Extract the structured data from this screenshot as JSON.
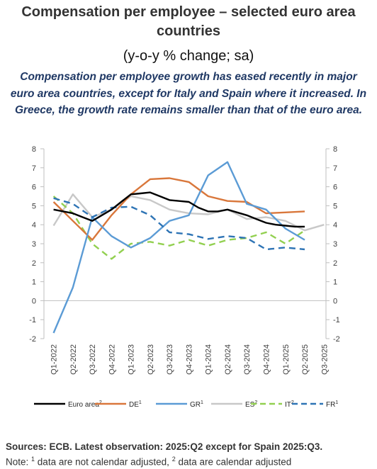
{
  "header": {
    "title_line1": "Compensation per employee – selected euro area",
    "title_line2": "countries",
    "subtitle": "(y-o-y % change; sa)",
    "lead": "Compensation per employee growth has eased recently in major euro area countries, except for Italy and Spain where it increased. In Greece, the growth rate remains smaller than that of the euro area."
  },
  "footer": {
    "sources": "Sources: ECB. Latest observation: 2025:Q2 except for Spain 2025:Q3.",
    "note_prefix": "Note: ",
    "note_sup1": "1",
    "note_text1": " data are not calendar adjusted, ",
    "note_sup2": "2",
    "note_text2": " data are calendar adjusted"
  },
  "chart_data": {
    "type": "line",
    "categories": [
      "Q1-2022",
      "Q2-2022",
      "Q3-2022",
      "Q4-2022",
      "Q1-2023",
      "Q2-2023",
      "Q3-2023",
      "Q4-2023",
      "Q1-2024",
      "Q2-2024",
      "Q3-2024",
      "Q4-2024",
      "Q1-2025",
      "Q2-2025",
      "Q3-2025"
    ],
    "ylim": [
      -2,
      8
    ],
    "yticks": [
      -2,
      -1,
      0,
      1,
      2,
      3,
      4,
      5,
      6,
      7,
      8
    ],
    "ytick_labels_left": [
      "-2",
      "-1",
      "0",
      "1",
      "2",
      "3",
      "4",
      "5",
      "6",
      "7",
      "8"
    ],
    "ytick_labels_right": [
      "-2",
      "-1",
      "0",
      "1",
      "2",
      "3",
      "4",
      "5",
      "6",
      "7",
      "8"
    ],
    "legend_position": "bottom",
    "grid": false,
    "series": [
      {
        "name": "Euro area",
        "sup": "2",
        "color": "#000000",
        "dash": "solid",
        "x": [
          0,
          0.5,
          1,
          1.5,
          2,
          2.5,
          3,
          3.5,
          4,
          4.5,
          5,
          5.5,
          6,
          6.5,
          7,
          7.5,
          8,
          8.5,
          9,
          9.5,
          10,
          10.5,
          11,
          11.5,
          12,
          12.5,
          13
        ],
        "values": [
          4.8,
          4.7,
          4.6,
          4.4,
          4.2,
          4.5,
          4.8,
          5.2,
          5.6,
          5.65,
          5.7,
          5.5,
          5.3,
          5.25,
          5.2,
          4.9,
          4.7,
          4.7,
          4.8,
          4.65,
          4.5,
          4.3,
          4.1,
          4.0,
          3.95,
          3.9,
          3.9
        ]
      },
      {
        "name": "DE",
        "sup": "1",
        "color": "#d9773b",
        "dash": "solid",
        "x": [
          0,
          1,
          2,
          3,
          4,
          5,
          6,
          7,
          8,
          9,
          10,
          11,
          12,
          13
        ],
        "values": [
          5.2,
          4.2,
          3.2,
          4.5,
          5.6,
          6.4,
          6.45,
          6.25,
          5.5,
          5.25,
          5.2,
          4.6,
          4.65,
          4.7
        ]
      },
      {
        "name": "GR",
        "sup": "1",
        "color": "#5b9bd5",
        "dash": "solid",
        "x": [
          0,
          1,
          2,
          3,
          4,
          5,
          6,
          7,
          8,
          9,
          10,
          11,
          12,
          13
        ],
        "values": [
          -1.7,
          0.7,
          4.4,
          3.4,
          2.8,
          3.3,
          4.2,
          4.5,
          6.6,
          7.3,
          5.1,
          4.8,
          3.8,
          3.2
        ]
      },
      {
        "name": "ES",
        "sup": "2",
        "color": "#c8c8c8",
        "dash": "solid",
        "x": [
          0,
          1,
          2,
          3,
          4,
          5,
          6,
          7,
          8,
          9,
          10,
          11,
          12,
          13,
          14
        ],
        "values": [
          3.95,
          5.6,
          4.4,
          4.8,
          5.5,
          5.3,
          4.8,
          4.6,
          4.55,
          4.8,
          4.3,
          4.4,
          4.2,
          3.7,
          4.0
        ]
      },
      {
        "name": "IT",
        "sup": "2",
        "color": "#92d050",
        "dash": "dashed",
        "x": [
          0,
          1,
          2,
          3,
          4,
          5,
          6,
          7,
          8,
          9,
          10,
          11,
          12,
          13
        ],
        "values": [
          5.5,
          4.6,
          3.0,
          2.2,
          3.0,
          3.1,
          2.9,
          3.2,
          2.9,
          3.2,
          3.3,
          3.6,
          3.0,
          3.7
        ]
      },
      {
        "name": "FR",
        "sup": "1",
        "color": "#2e74b5",
        "dash": "dashed",
        "x": [
          0,
          1,
          2,
          3,
          4,
          5,
          6,
          7,
          8,
          9,
          10,
          11,
          12,
          13
        ],
        "values": [
          5.4,
          5.1,
          4.4,
          4.9,
          4.95,
          4.5,
          3.6,
          3.5,
          3.25,
          3.4,
          3.3,
          2.7,
          2.8,
          2.7
        ]
      }
    ]
  }
}
